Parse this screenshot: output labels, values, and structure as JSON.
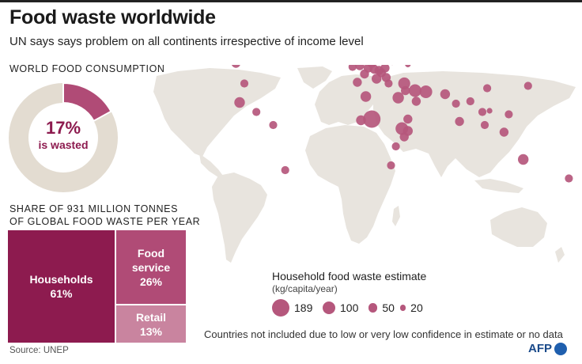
{
  "title": "Food waste worldwide",
  "subtitle": "UN says says problem on all continents irrespective of income level",
  "consumption": {
    "label": "WORLD FOOD CONSUMPTION",
    "pct_label": "17%",
    "sub_label": "is wasted",
    "wasted_fraction": 0.17
  },
  "share": {
    "label_line1": "SHARE OF 931 MILLION TONNES",
    "label_line2": "OF GLOBAL FOOD WASTE PER YEAR"
  },
  "legend": {
    "title": "Household food waste estimate",
    "unit": "(kg/capita/year)",
    "items": [
      {
        "label": "189",
        "value": 189
      },
      {
        "label": "100",
        "value": 100
      },
      {
        "label": "50",
        "value": 50
      },
      {
        "label": "20",
        "value": 20
      }
    ]
  },
  "note": "Countries not included due to low or very low confidence in estimate or no data",
  "source": "Source:  UNEP",
  "logo": "AFP",
  "colors": {
    "accent": "#8d1b4f",
    "donut_bg": "#e3dcd1",
    "households": "#8d1b4f",
    "food_service": "#b04b76",
    "retail": "#c9849f",
    "bubble": "#b5577c",
    "land": "#e8e4de"
  },
  "chart_data": [
    {
      "type": "pie",
      "categories": [
        "is wasted"
      ],
      "values": [
        17
      ]
    },
    {
      "type": "treemap",
      "categories": [
        "Households",
        "Food service",
        "Retail"
      ],
      "values": [
        61,
        26,
        13
      ],
      "labels": [
        "Households",
        "Food service",
        "Retail"
      ],
      "value_labels": [
        "61%",
        "26%",
        "13%"
      ]
    },
    {
      "type": "scatter",
      "description_units": "kg/capita/year",
      "points": [
        {
          "lon": -105,
          "lat": 56,
          "value": 50
        },
        {
          "lon": -98,
          "lat": 39,
          "value": 40
        },
        {
          "lon": -102,
          "lat": 23,
          "value": 70
        },
        {
          "lon": -88,
          "lat": 15,
          "value": 40
        },
        {
          "lon": -74,
          "lat": 4,
          "value": 40
        },
        {
          "lon": -64,
          "lat": -34,
          "value": 40
        },
        {
          "lon": -8,
          "lat": 53,
          "value": 40
        },
        {
          "lon": -2,
          "lat": 54,
          "value": 50
        },
        {
          "lon": 2,
          "lat": 47,
          "value": 50
        },
        {
          "lon": 5,
          "lat": 52,
          "value": 50
        },
        {
          "lon": 8,
          "lat": 56,
          "value": 50
        },
        {
          "lon": 10,
          "lat": 51,
          "value": 50
        },
        {
          "lon": 14,
          "lat": 50,
          "value": 50
        },
        {
          "lon": 16,
          "lat": 48,
          "value": 50
        },
        {
          "lon": 19,
          "lat": 52,
          "value": 50
        },
        {
          "lon": 15,
          "lat": 62,
          "value": 50
        },
        {
          "lon": 26,
          "lat": 61,
          "value": 50
        },
        {
          "lon": 25,
          "lat": 58,
          "value": 40
        },
        {
          "lon": 12,
          "lat": 43,
          "value": 60
        },
        {
          "lon": 20,
          "lat": 44,
          "value": 50
        },
        {
          "lon": -4,
          "lat": 40,
          "value": 50
        },
        {
          "lon": 22,
          "lat": 39,
          "value": 40
        },
        {
          "lon": 35,
          "lat": 39,
          "value": 90
        },
        {
          "lon": 38,
          "lat": 55,
          "value": 20
        },
        {
          "lon": 3,
          "lat": 28,
          "value": 70
        },
        {
          "lon": 36,
          "lat": 33,
          "value": 50
        },
        {
          "lon": 44,
          "lat": 33,
          "value": 100
        },
        {
          "lon": 30,
          "lat": 27,
          "value": 80
        },
        {
          "lon": 53,
          "lat": 32,
          "value": 100
        },
        {
          "lon": 45,
          "lat": 24,
          "value": 50
        },
        {
          "lon": 69,
          "lat": 30,
          "value": 60
        },
        {
          "lon": 78,
          "lat": 22,
          "value": 40
        },
        {
          "lon": 90,
          "lat": 24,
          "value": 40
        },
        {
          "lon": 104,
          "lat": 35,
          "value": 40
        },
        {
          "lon": 138,
          "lat": 37,
          "value": 40
        },
        {
          "lon": 100,
          "lat": 15,
          "value": 40
        },
        {
          "lon": 106,
          "lat": 16,
          "value": 20
        },
        {
          "lon": 81,
          "lat": 7,
          "value": 50
        },
        {
          "lon": 102,
          "lat": 4,
          "value": 40
        },
        {
          "lon": 118,
          "lat": -2,
          "value": 50
        },
        {
          "lon": 122,
          "lat": 13,
          "value": 40
        },
        {
          "lon": 8,
          "lat": 9,
          "value": 189
        },
        {
          "lon": -1,
          "lat": 8,
          "value": 60
        },
        {
          "lon": 38,
          "lat": 9,
          "value": 50
        },
        {
          "lon": 33,
          "lat": 1,
          "value": 100
        },
        {
          "lon": 38,
          "lat": -1,
          "value": 60
        },
        {
          "lon": 35,
          "lat": -6,
          "value": 50
        },
        {
          "lon": 28,
          "lat": -14,
          "value": 40
        },
        {
          "lon": 24,
          "lat": -30,
          "value": 40
        },
        {
          "lon": 134,
          "lat": -25,
          "value": 70
        },
        {
          "lon": 172,
          "lat": -41,
          "value": 40
        }
      ]
    }
  ]
}
